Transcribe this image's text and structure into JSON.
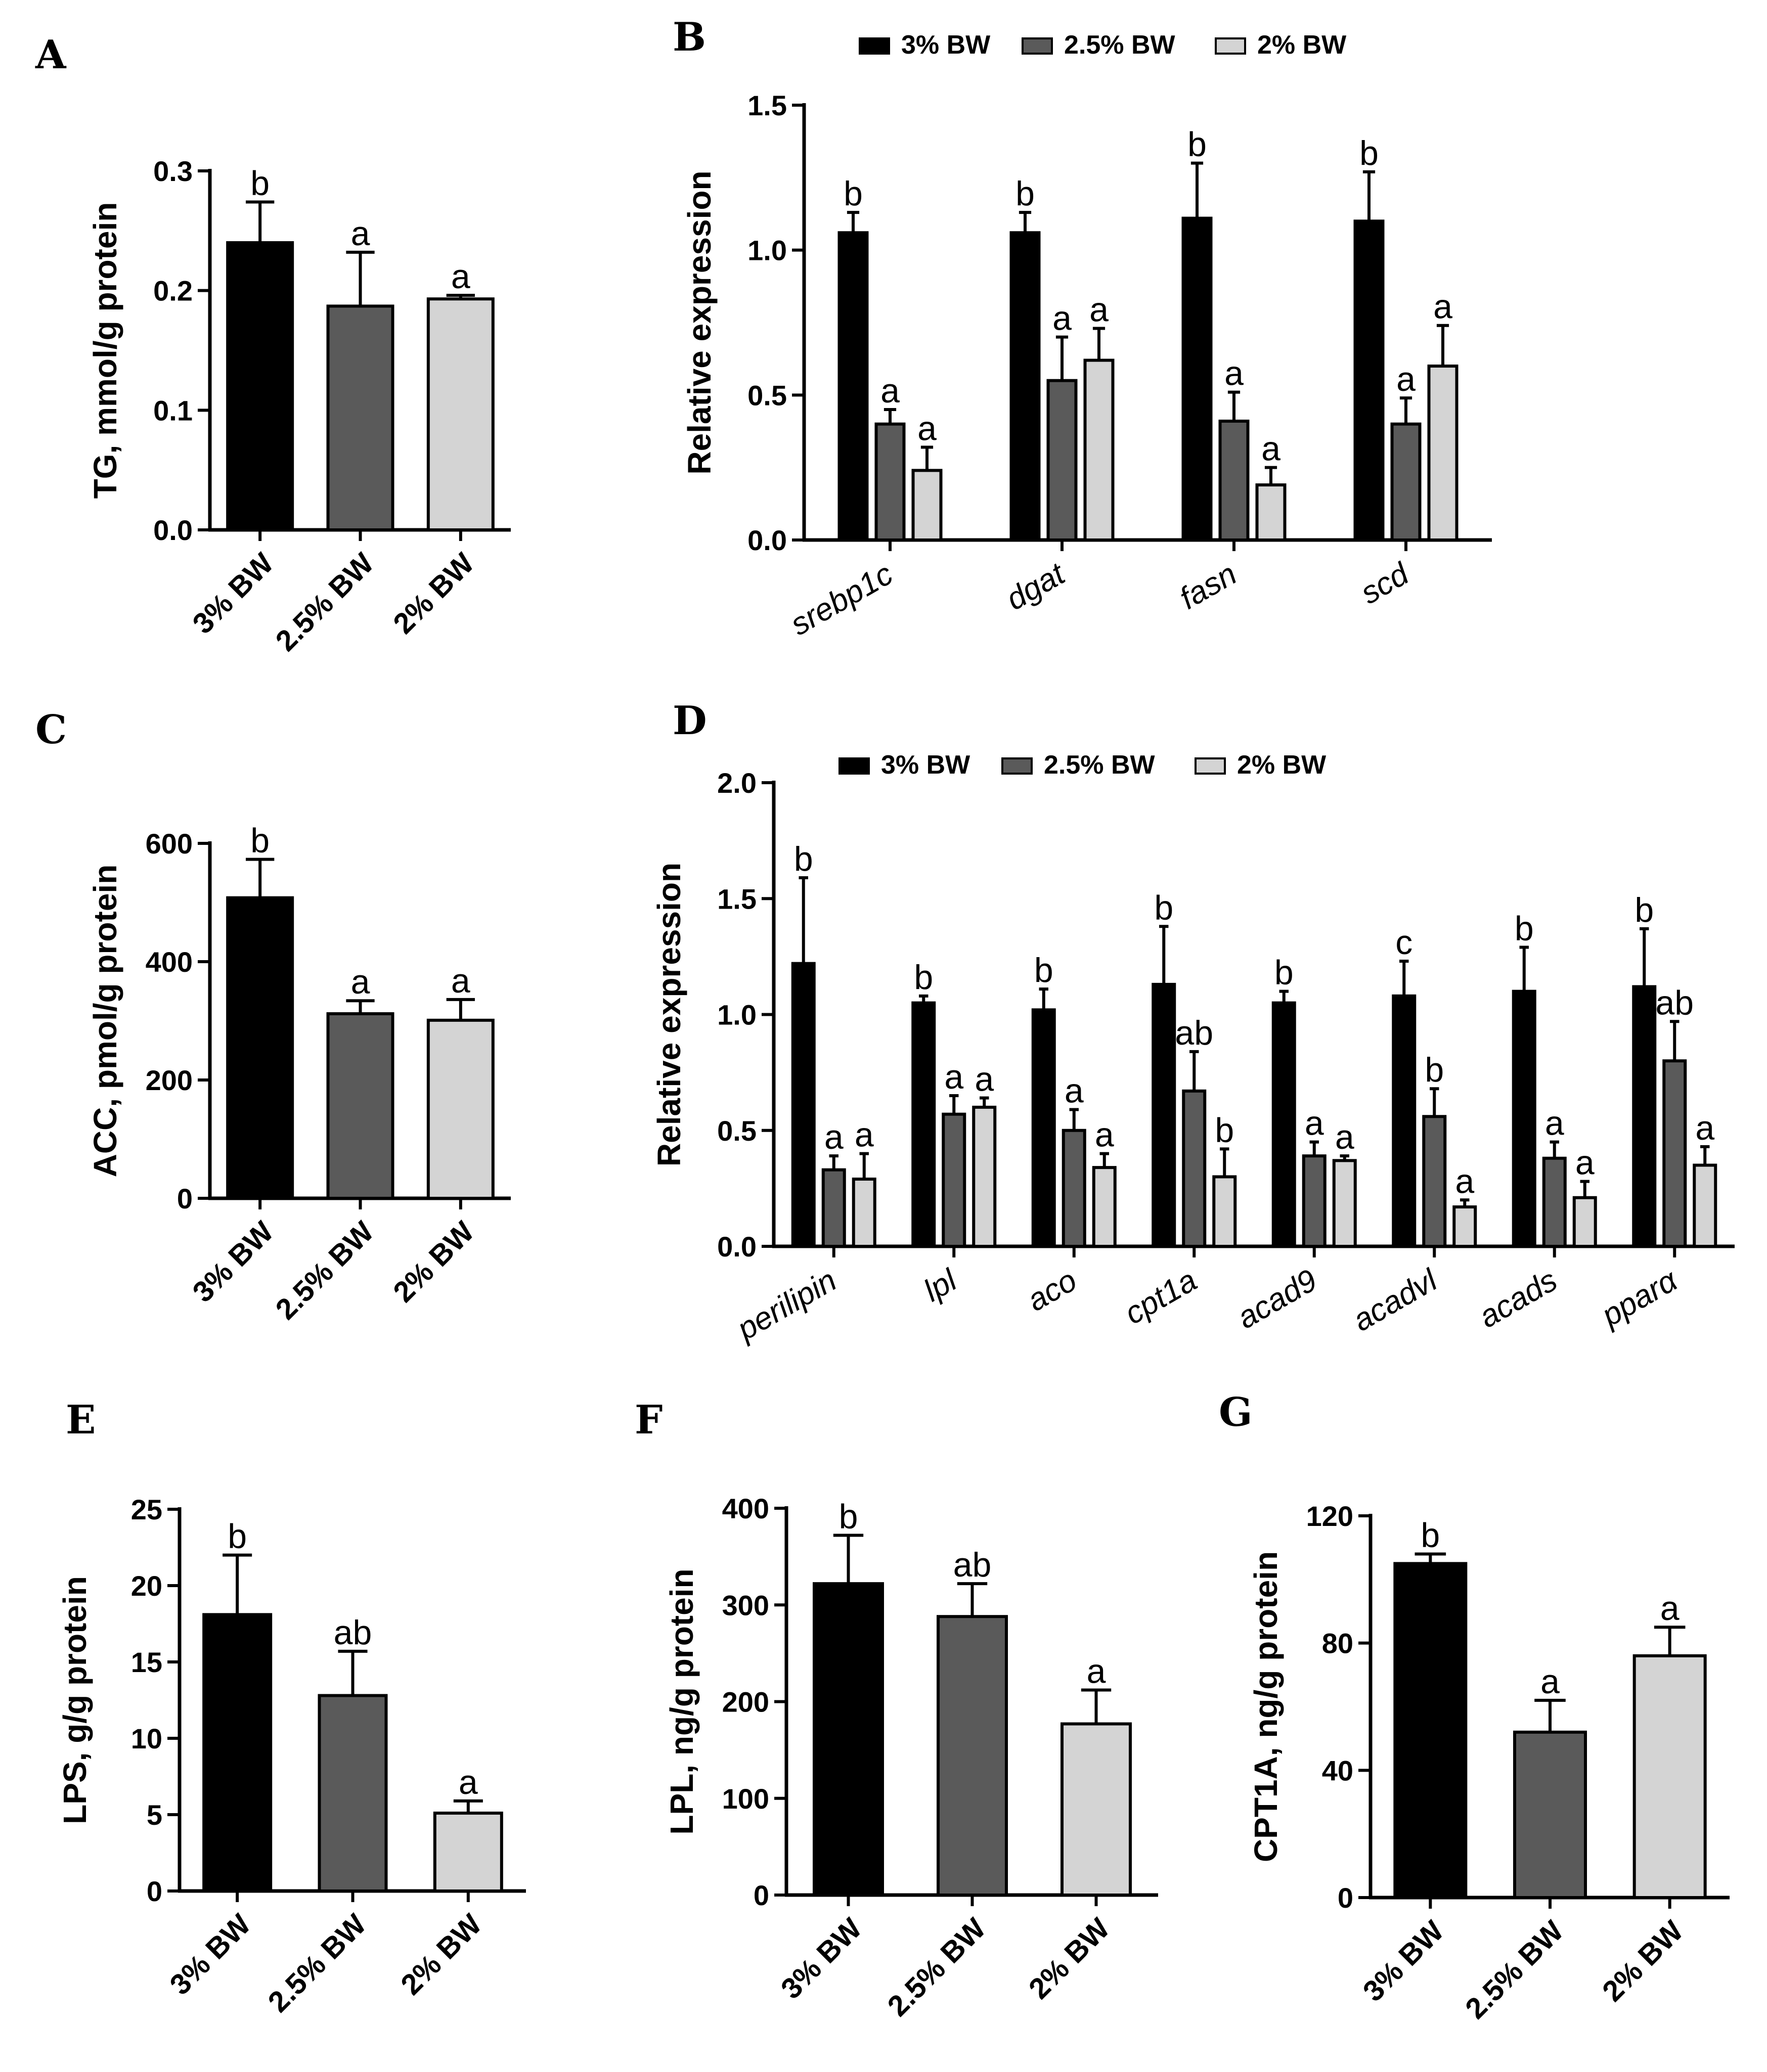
{
  "colors": {
    "g3": "#000000",
    "g25": "#5a5a5a",
    "g2": "#d4d4d4",
    "axis": "#000000"
  },
  "legend_labels": [
    "3% BW",
    "2.5% BW",
    "2% BW"
  ],
  "chart_data": [
    {
      "panel": "A",
      "type": "bar",
      "categories": [
        "3% BW",
        "2.5% BW",
        "2% BW"
      ],
      "values": [
        0.24,
        0.187,
        0.193
      ],
      "errors": [
        0.034,
        0.045,
        0.003
      ],
      "letters": [
        "b",
        "a",
        "a"
      ],
      "ylabel": "TG, mmol/g protein",
      "ylim": [
        0,
        0.3
      ],
      "yticks": [
        "0.0",
        "0.1",
        "0.2",
        "0.3"
      ]
    },
    {
      "panel": "B",
      "type": "bar",
      "categories": [
        "srebp1c",
        "dgat",
        "fasn",
        "scd"
      ],
      "series": [
        {
          "name": "3% BW",
          "values": [
            1.06,
            1.06,
            1.11,
            1.1
          ],
          "errors": [
            0.07,
            0.07,
            0.19,
            0.17
          ],
          "letters": [
            "b",
            "b",
            "b",
            "b"
          ]
        },
        {
          "name": "2.5% BW",
          "values": [
            0.4,
            0.55,
            0.41,
            0.4
          ],
          "errors": [
            0.05,
            0.15,
            0.1,
            0.09
          ],
          "letters": [
            "a",
            "a",
            "a",
            "a"
          ]
        },
        {
          "name": "2% BW",
          "values": [
            0.24,
            0.62,
            0.19,
            0.6
          ],
          "errors": [
            0.08,
            0.11,
            0.06,
            0.14
          ],
          "letters": [
            "a",
            "a",
            "a",
            "a"
          ]
        }
      ],
      "ylabel": "Relative expression",
      "ylim": [
        0,
        1.5
      ],
      "yticks": [
        "0.0",
        "0.5",
        "1.0",
        "1.5"
      ],
      "legend": "top"
    },
    {
      "panel": "C",
      "type": "bar",
      "categories": [
        "3% BW",
        "2.5% BW",
        "2% BW"
      ],
      "values": [
        508,
        312,
        301
      ],
      "errors": [
        65,
        22,
        35
      ],
      "letters": [
        "b",
        "a",
        "a"
      ],
      "ylabel": "ACC, pmol/g protein",
      "ylim": [
        0,
        600
      ],
      "yticks": [
        "0",
        "200",
        "400",
        "600"
      ]
    },
    {
      "panel": "D",
      "type": "bar",
      "categories": [
        "perilipin",
        "lpl",
        "aco",
        "cpt1a",
        "acad9",
        "acadvl",
        "acads",
        "pparα"
      ],
      "series": [
        {
          "name": "3% BW",
          "values": [
            1.22,
            1.05,
            1.02,
            1.13,
            1.05,
            1.08,
            1.1,
            1.12
          ],
          "errors": [
            0.37,
            0.03,
            0.09,
            0.25,
            0.05,
            0.15,
            0.19,
            0.25
          ],
          "letters": [
            "b",
            "b",
            "b",
            "b",
            "b",
            "c",
            "b",
            "b"
          ]
        },
        {
          "name": "2.5% BW",
          "values": [
            0.33,
            0.57,
            0.5,
            0.67,
            0.39,
            0.56,
            0.38,
            0.8
          ],
          "errors": [
            0.06,
            0.08,
            0.09,
            0.17,
            0.06,
            0.12,
            0.07,
            0.17
          ],
          "letters": [
            "a",
            "a",
            "a",
            "ab",
            "a",
            "b",
            "a",
            "ab"
          ]
        },
        {
          "name": "2% BW",
          "values": [
            0.29,
            0.6,
            0.34,
            0.3,
            0.37,
            0.17,
            0.21,
            0.35
          ],
          "errors": [
            0.11,
            0.04,
            0.06,
            0.12,
            0.02,
            0.03,
            0.07,
            0.08
          ],
          "letters": [
            "a",
            "a",
            "a",
            "b",
            "a",
            "a",
            "a",
            "a"
          ]
        }
      ],
      "ylabel": "Relative expression",
      "ylim": [
        0,
        2.0
      ],
      "yticks": [
        "0.0",
        "0.5",
        "1.0",
        "1.5",
        "2.0"
      ],
      "legend": "top"
    },
    {
      "panel": "E",
      "type": "bar",
      "categories": [
        "3% BW",
        "2.5% BW",
        "2% BW"
      ],
      "values": [
        18.1,
        12.8,
        5.1
      ],
      "errors": [
        3.9,
        2.9,
        0.8
      ],
      "letters": [
        "b",
        "ab",
        "a"
      ],
      "ylabel": "LPS, g/g protein",
      "ylim": [
        0,
        25
      ],
      "yticks": [
        "0",
        "5",
        "10",
        "15",
        "20",
        "25"
      ]
    },
    {
      "panel": "F",
      "type": "bar",
      "categories": [
        "3% BW",
        "2.5% BW",
        "2% BW"
      ],
      "values": [
        322,
        288,
        177
      ],
      "errors": [
        50,
        34,
        35
      ],
      "letters": [
        "b",
        "ab",
        "a"
      ],
      "ylabel": "LPL, ng/g protein",
      "ylim": [
        0,
        400
      ],
      "yticks": [
        "0",
        "100",
        "200",
        "300",
        "400"
      ]
    },
    {
      "panel": "G",
      "type": "bar",
      "categories": [
        "3% BW",
        "2.5% BW",
        "2% BW"
      ],
      "values": [
        105,
        52,
        76
      ],
      "errors": [
        3,
        10,
        9
      ],
      "letters": [
        "b",
        "a",
        "a"
      ],
      "ylabel": "CPT1A, ng/g protein",
      "ylim": [
        0,
        120
      ],
      "yticks": [
        "0",
        "40",
        "80",
        "120"
      ]
    }
  ]
}
